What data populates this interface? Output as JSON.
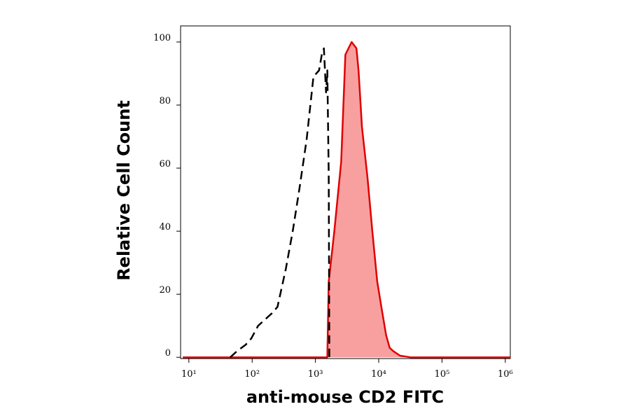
{
  "chart_data": {
    "type": "line",
    "xlabel": "anti-mouse CD2 FITC",
    "ylabel": "Relative Cell Count",
    "xscale": "log",
    "xlim": [
      7.4,
      1200000
    ],
    "ylim": [
      -0.4,
      105.1
    ],
    "xticks": [
      {
        "value": 10,
        "label": "10¹"
      },
      {
        "value": 100,
        "label": "10²"
      },
      {
        "value": 1000,
        "label": "10³"
      },
      {
        "value": 10000,
        "label": "10⁴"
      },
      {
        "value": 100000,
        "label": "10⁵"
      },
      {
        "value": 1000000,
        "label": "10⁶"
      }
    ],
    "yticks": [
      0,
      20,
      40,
      60,
      80,
      100
    ],
    "series": [
      {
        "color": "#e00000",
        "fill": "#f8a0a0",
        "dashed": false,
        "x": [
          8,
          1540,
          1620,
          1990,
          2550,
          2970,
          3730,
          4440,
          4800,
          5440,
          6650,
          7930,
          9460,
          11000,
          13100,
          14900,
          16900,
          21700,
          31700,
          1200000
        ],
        "values": [
          0,
          0,
          24,
          40,
          62,
          96,
          100,
          98,
          91,
          73,
          57,
          40,
          24,
          16,
          7,
          3,
          2,
          0.5,
          0,
          0
        ]
      },
      {
        "color": "#000000",
        "dashed": true,
        "x": [
          45,
          58,
          79,
          97,
          124,
          160,
          206,
          251,
          340,
          438,
          563,
          725,
          931,
          1140,
          1260,
          1360,
          1470,
          1540,
          1620,
          1660
        ],
        "values": [
          0,
          2,
          4,
          6,
          10,
          12,
          14,
          16,
          28,
          40,
          54,
          69,
          89,
          91,
          96,
          98,
          84,
          91,
          58,
          0
        ]
      }
    ]
  }
}
